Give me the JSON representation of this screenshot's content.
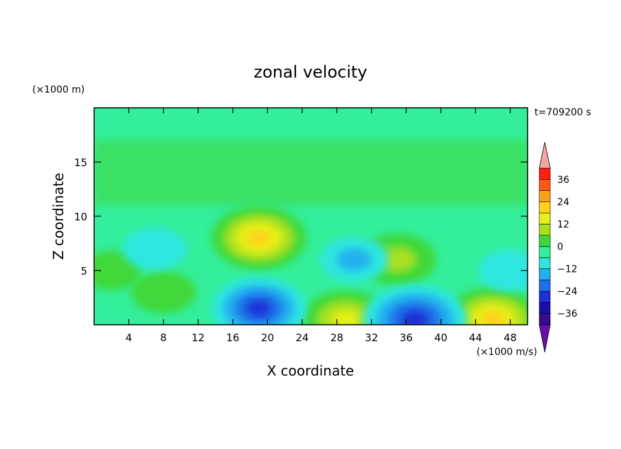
{
  "chart_data": {
    "type": "heatmap",
    "title": "zonal velocity",
    "xlabel": "X coordinate",
    "ylabel": "Z coordinate",
    "x_unit": "(×1000 m/s)",
    "y_unit": "(×1000 m)",
    "time_label": "t=709200 s",
    "xlim": [
      0,
      50
    ],
    "ylim": [
      0,
      20
    ],
    "x_ticks": [
      "4",
      "8",
      "12",
      "16",
      "20",
      "24",
      "28",
      "32",
      "36",
      "40",
      "44",
      "48"
    ],
    "y_ticks": [
      "5",
      "10",
      "15"
    ],
    "colorbar": {
      "levels": [
        -42,
        -36,
        -30,
        -24,
        -18,
        -12,
        -6,
        0,
        6,
        12,
        18,
        24,
        30,
        36,
        42
      ],
      "tick_labels": [
        "36",
        "24",
        "12",
        "0",
        "−12",
        "−24",
        "−36"
      ],
      "colors": [
        "#6a0dad",
        "#3a0a8c",
        "#1a10a8",
        "#1f2fd6",
        "#1f6fe8",
        "#22b0ee",
        "#2de6e0",
        "#33ee9a",
        "#3fd83a",
        "#a8e020",
        "#e6f018",
        "#ffd21c",
        "#ffa01a",
        "#ff5a1a",
        "#ff2010",
        "#f2a6a6"
      ],
      "extend": "both"
    },
    "features": [
      {
        "x": 19,
        "z": 8,
        "value": 22
      },
      {
        "x": 35,
        "z": 6,
        "value": 14
      },
      {
        "x": 46,
        "z": 0.5,
        "value": 22
      },
      {
        "x": 29,
        "z": 0.5,
        "value": 18
      },
      {
        "x": 8,
        "z": 3,
        "value": 8
      },
      {
        "x": 19,
        "z": 1.5,
        "value": -22
      },
      {
        "x": 37,
        "z": 0.5,
        "value": -26
      },
      {
        "x": 2,
        "z": 5,
        "value": 6
      },
      {
        "x": 7,
        "z": 7,
        "value": -8
      },
      {
        "x": 30,
        "z": 6,
        "value": -10
      },
      {
        "x": 48,
        "z": 5,
        "value": -8
      }
    ]
  }
}
